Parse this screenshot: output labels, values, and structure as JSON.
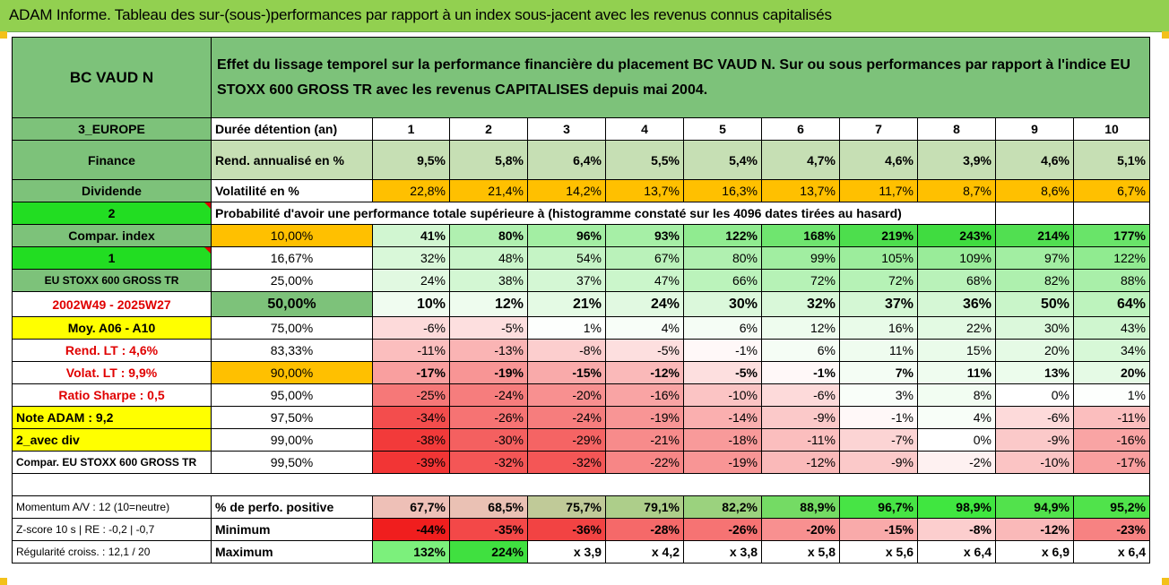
{
  "title": "ADAM Informe. Tableau des sur-(sous-)performances par rapport à un index sous-jacent avec les revenus connus capitalisés",
  "fund": "BC VAUD N",
  "description": "Effet du lissage temporel sur la performance financière du placement BC VAUD N. Sur ou sous performances par rapport à l'indice EU STOXX 600 GROSS TR avec les revenus CAPITALISES depuis mai 2004.",
  "labels": {
    "region": "3_EUROPE",
    "sector": "Finance",
    "dividend": "Dividende",
    "two": "2",
    "compar_index": "Compar. index",
    "one": "1",
    "index_name": "EU STOXX 600 GROSS TR",
    "period": "2002W49 - 2025W27",
    "moy": "Moy. A06 - A10",
    "rend_lt": "Rend. LT :   4,6%",
    "volat_lt": "Volat. LT :   9,9%",
    "sharpe": "Ratio Sharpe :   0,5",
    "note": "Note ADAM : 9,2",
    "avec_div": "2_avec div",
    "compar_full": "Compar. EU STOXX 600 GROSS TR",
    "momentum": "Momentum A/V : 12 (10=neutre)",
    "zscore": "Z-score 10 s | RE : -0,2 | -0,7",
    "regularite": "Régularité croiss. : 12,1 / 20"
  },
  "rows_header": {
    "holding": "Durée détention (an)",
    "rend": "Rend. annualisé en %",
    "vol": "Volatilité en %",
    "prob": "Probabilité d'avoir une performance totale supérieure à (histogramme constaté sur les 4096 dates tirées au hasard)",
    "pct_pos": "% de perfo. positive",
    "min": "Minimum",
    "max": "Maximum"
  },
  "years": [
    "1",
    "2",
    "3",
    "4",
    "5",
    "6",
    "7",
    "8",
    "9",
    "10"
  ],
  "rend": [
    "9,5%",
    "5,8%",
    "6,4%",
    "5,5%",
    "5,4%",
    "4,7%",
    "4,6%",
    "3,9%",
    "4,6%",
    "5,1%"
  ],
  "vol": [
    "22,8%",
    "21,4%",
    "14,2%",
    "13,7%",
    "16,3%",
    "13,7%",
    "11,7%",
    "8,7%",
    "8,6%",
    "6,7%"
  ],
  "quantile_rows": [
    {
      "q": "10,00%",
      "vals": [
        "41%",
        "80%",
        "96%",
        "93%",
        "122%",
        "168%",
        "219%",
        "243%",
        "214%",
        "177%"
      ]
    },
    {
      "q": "16,67%",
      "vals": [
        "32%",
        "48%",
        "54%",
        "67%",
        "80%",
        "99%",
        "105%",
        "109%",
        "97%",
        "122%"
      ]
    },
    {
      "q": "25,00%",
      "vals": [
        "24%",
        "38%",
        "37%",
        "47%",
        "66%",
        "72%",
        "72%",
        "68%",
        "82%",
        "88%"
      ]
    },
    {
      "q": "50,00%",
      "vals": [
        "10%",
        "12%",
        "21%",
        "24%",
        "30%",
        "32%",
        "37%",
        "36%",
        "50%",
        "64%"
      ]
    },
    {
      "q": "75,00%",
      "vals": [
        "-6%",
        "-5%",
        "1%",
        "4%",
        "6%",
        "12%",
        "16%",
        "22%",
        "30%",
        "43%"
      ]
    },
    {
      "q": "83,33%",
      "vals": [
        "-11%",
        "-13%",
        "-8%",
        "-5%",
        "-1%",
        "6%",
        "11%",
        "15%",
        "20%",
        "34%"
      ]
    },
    {
      "q": "90,00%",
      "vals": [
        "-17%",
        "-19%",
        "-15%",
        "-12%",
        "-5%",
        "-1%",
        "7%",
        "11%",
        "13%",
        "20%"
      ]
    },
    {
      "q": "95,00%",
      "vals": [
        "-25%",
        "-24%",
        "-20%",
        "-16%",
        "-10%",
        "-6%",
        "3%",
        "8%",
        "0%",
        "1%"
      ]
    },
    {
      "q": "97,50%",
      "vals": [
        "-34%",
        "-26%",
        "-24%",
        "-19%",
        "-14%",
        "-9%",
        "-1%",
        "4%",
        "-6%",
        "-11%"
      ]
    },
    {
      "q": "99,00%",
      "vals": [
        "-38%",
        "-30%",
        "-29%",
        "-21%",
        "-18%",
        "-11%",
        "-7%",
        "0%",
        "-9%",
        "-16%"
      ]
    },
    {
      "q": "99,50%",
      "vals": [
        "-39%",
        "-32%",
        "-32%",
        "-22%",
        "-19%",
        "-12%",
        "-9%",
        "-2%",
        "-10%",
        "-17%"
      ]
    }
  ],
  "pct_pos": [
    "67,7%",
    "68,5%",
    "75,7%",
    "79,1%",
    "82,2%",
    "88,9%",
    "96,7%",
    "98,9%",
    "94,9%",
    "95,2%"
  ],
  "minimum": [
    "-44%",
    "-35%",
    "-36%",
    "-28%",
    "-26%",
    "-20%",
    "-15%",
    "-8%",
    "-12%",
    "-23%"
  ],
  "maximum": [
    "132%",
    "224%",
    "x 3,9",
    "x 4,2",
    "x 3,8",
    "x 5,8",
    "x 5,6",
    "x 6,4",
    "x 6,9",
    "x 6,4"
  ]
}
